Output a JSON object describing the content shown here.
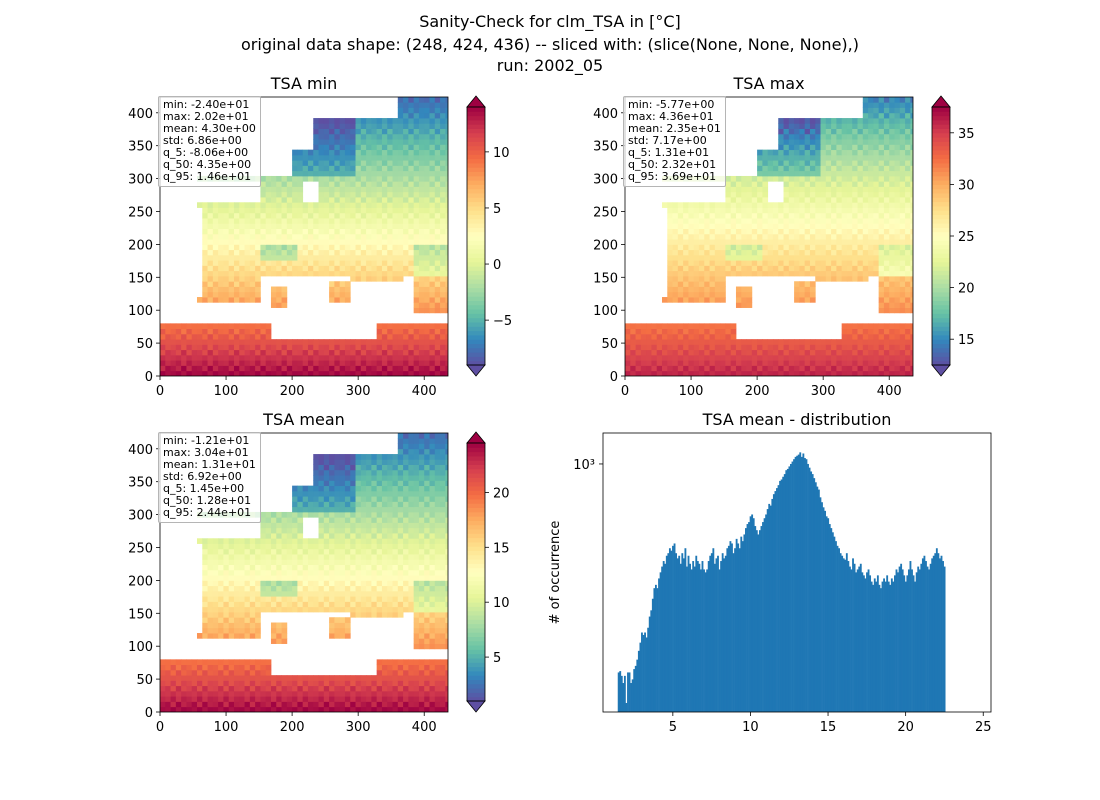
{
  "figure": {
    "title_lines": [
      "Sanity-Check for clm_TSA in [°C]",
      "original data shape: (248, 424, 436) -- sliced with: (slice(None, None, None),)",
      "run: 2002_05"
    ]
  },
  "chart_data": [
    {
      "type": "heatmap",
      "title": "TSA min",
      "xlim": [
        0,
        436
      ],
      "ylim": [
        0,
        424
      ],
      "x_ticks": [
        0,
        100,
        200,
        300,
        400
      ],
      "y_ticks": [
        0,
        50,
        100,
        150,
        200,
        250,
        300,
        350,
        400
      ],
      "colorbar": {
        "colormap": "Spectral_r",
        "range": [
          -9.0,
          14.0
        ],
        "ticks": [
          -5,
          0,
          5,
          10
        ],
        "extend": "both"
      },
      "stats": [
        "min: -2.40e+01",
        "max: 2.02e+01",
        "mean: 4.30e+00",
        "std: 6.86e+00",
        "q_5: -8.06e+00",
        "q_50: 4.35e+00",
        "q_95: 1.46e+01"
      ],
      "stats_placement": "top-left"
    },
    {
      "type": "heatmap",
      "title": "TSA max",
      "xlim": [
        0,
        436
      ],
      "ylim": [
        0,
        424
      ],
      "x_ticks": [
        0,
        100,
        200,
        300,
        400
      ],
      "y_ticks": [
        0,
        50,
        100,
        150,
        200,
        250,
        300,
        350,
        400
      ],
      "colorbar": {
        "colormap": "Spectral_r",
        "range": [
          12.5,
          37.5
        ],
        "ticks": [
          15,
          20,
          25,
          30,
          35
        ],
        "extend": "both"
      },
      "stats": [
        "min: -5.77e+00",
        "max: 4.36e+01",
        "mean: 2.35e+01",
        "std: 7.17e+00",
        "q_5: 1.31e+01",
        "q_50: 2.32e+01",
        "q_95: 3.69e+01"
      ],
      "stats_placement": "top-left"
    },
    {
      "type": "heatmap",
      "title": "TSA mean",
      "xlim": [
        0,
        436
      ],
      "ylim": [
        0,
        424
      ],
      "x_ticks": [
        0,
        100,
        200,
        300,
        400
      ],
      "y_ticks": [
        0,
        50,
        100,
        150,
        200,
        250,
        300,
        350,
        400
      ],
      "colorbar": {
        "colormap": "Spectral_r",
        "range": [
          1.0,
          24.5
        ],
        "ticks": [
          5,
          10,
          15,
          20
        ],
        "extend": "both"
      },
      "stats": [
        "min: -1.21e+01",
        "max: 3.04e+01",
        "mean: 1.31e+01",
        "std: 6.92e+00",
        "q_5: 1.45e+00",
        "q_50: 1.28e+01",
        "q_95: 2.44e+01"
      ],
      "stats_placement": "top-left"
    },
    {
      "type": "bar",
      "title": "TSA mean - distribution",
      "ylabel": "# of occurrence",
      "xlim": [
        0.5,
        25.5
      ],
      "x_ticks": [
        5,
        10,
        15,
        20,
        25
      ],
      "y_scale": "log",
      "ylim": [
        130,
        1290
      ],
      "y_ticks": [
        1000
      ],
      "y_tick_labels": [
        "10³"
      ],
      "bar_color": "#1f77b4",
      "bins_start": 1.45,
      "bin_width": 0.1,
      "counts": [
        180,
        182,
        175,
        165,
        175,
        140,
        180,
        180,
        165,
        170,
        185,
        190,
        200,
        215,
        230,
        250,
        245,
        250,
        240,
        260,
        285,
        300,
        330,
        360,
        370,
        360,
        390,
        410,
        430,
        450,
        440,
        470,
        480,
        500,
        490,
        510,
        520,
        480,
        460,
        470,
        440,
        480,
        460,
        500,
        430,
        470,
        440,
        420,
        450,
        430,
        470,
        450,
        440,
        420,
        450,
        420,
        410,
        420,
        450,
        470,
        480,
        500,
        440,
        460,
        470,
        420,
        450,
        480,
        460,
        470,
        500,
        510,
        530,
        520,
        480,
        500,
        540,
        520,
        500,
        550,
        530,
        560,
        590,
        610,
        620,
        650,
        660,
        640,
        600,
        580,
        560,
        580,
        600,
        620,
        640,
        660,
        690,
        720,
        710,
        750,
        780,
        800,
        820,
        840,
        870,
        880,
        900,
        920,
        950,
        960,
        980,
        1000,
        1020,
        1040,
        1060,
        1070,
        1080,
        1100,
        1060,
        1090,
        1050,
        1040,
        1000,
        970,
        940,
        920,
        890,
        860,
        830,
        810,
        760,
        730,
        700,
        680,
        650,
        640,
        610,
        590,
        570,
        550,
        530,
        510,
        500,
        480,
        470,
        460,
        455,
        480,
        450,
        430,
        420,
        460,
        440,
        410,
        420,
        430,
        440,
        410,
        400,
        390,
        410,
        420,
        400,
        380,
        370,
        390,
        380,
        400,
        370,
        360,
        380,
        390,
        380,
        400,
        380,
        370,
        390,
        380,
        400,
        420,
        410,
        430,
        440,
        420,
        400,
        380,
        400,
        420,
        450,
        420,
        400,
        380,
        410,
        430,
        420,
        440,
        460,
        470,
        450,
        430,
        420,
        440,
        460,
        470,
        480,
        500,
        480,
        460,
        470,
        450,
        430
      ]
    }
  ]
}
